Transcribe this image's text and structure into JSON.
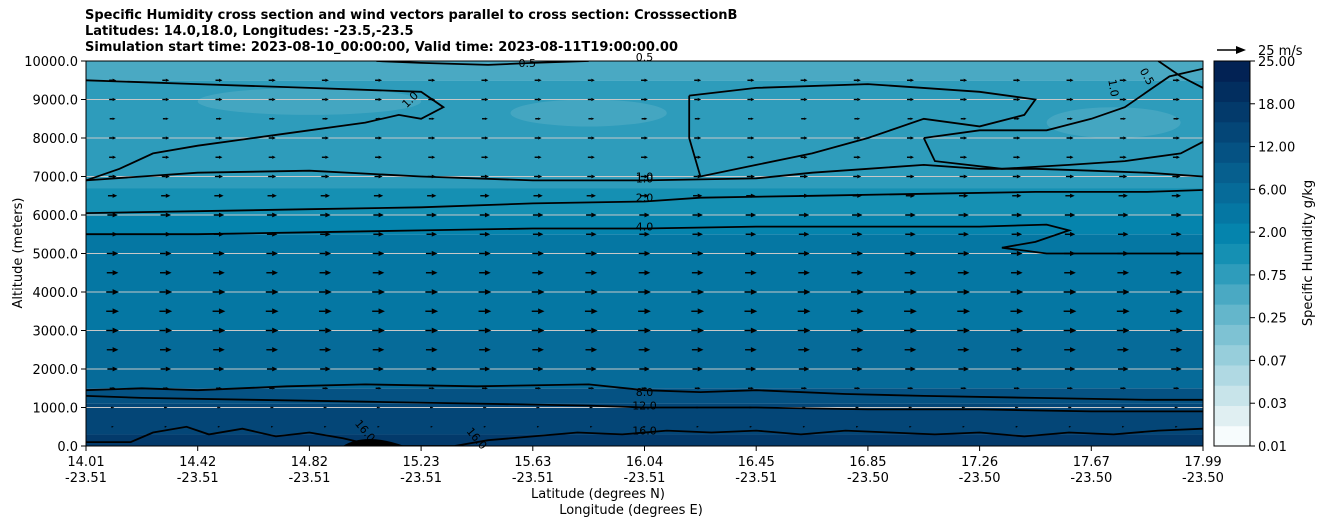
{
  "chart_data": {
    "type": "contour",
    "title_lines": [
      "Specific Humidity cross section and wind vectors parallel to cross section: CrosssectionB",
      "Latitudes: 14.0,18.0, Longitudes: -23.5,-23.5",
      "Simulation start time: 2023-08-10_00:00:00, Valid time: 2023-08-11T19:00:00.00"
    ],
    "ylabel": "Altitude (meters)",
    "xlabel_lat": "Latitude (degrees N)",
    "xlabel_lon": "Longitude (degrees E)",
    "ylim": [
      0,
      10000
    ],
    "y_ticks": [
      "0.0",
      "1000.0",
      "2000.0",
      "3000.0",
      "4000.0",
      "5000.0",
      "6000.0",
      "7000.0",
      "8000.0",
      "9000.0",
      "10000.0"
    ],
    "x_ticks": [
      {
        "lat": "14.01",
        "lon": "-23.51"
      },
      {
        "lat": "14.42",
        "lon": "-23.51"
      },
      {
        "lat": "14.82",
        "lon": "-23.51"
      },
      {
        "lat": "15.23",
        "lon": "-23.51"
      },
      {
        "lat": "15.63",
        "lon": "-23.51"
      },
      {
        "lat": "16.04",
        "lon": "-23.51"
      },
      {
        "lat": "16.45",
        "lon": "-23.51"
      },
      {
        "lat": "16.85",
        "lon": "-23.50"
      },
      {
        "lat": "17.26",
        "lon": "-23.50"
      },
      {
        "lat": "17.67",
        "lon": "-23.50"
      },
      {
        "lat": "17.99",
        "lon": "-23.50"
      }
    ],
    "colorbar": {
      "label": "Specific Humidity g/kg",
      "ticks": [
        "0.01",
        "0.03",
        "0.07",
        "0.15",
        "0.25",
        "0.50",
        "0.75",
        "1.00",
        "2.00",
        "4.00",
        "6.00",
        "9.00",
        "12.00",
        "15.00",
        "18.00",
        "21.00",
        "25.00"
      ],
      "tick_labels": [
        "0.01",
        "0.03",
        "0.07",
        "0.25",
        "0.75",
        "2.00",
        "6.00",
        "12.00",
        "18.00",
        "25.00"
      ],
      "colors": [
        "#f7fcfd",
        "#e0eff2",
        "#c8e4ea",
        "#b0d9e3",
        "#97cedb",
        "#7ec2d3",
        "#64b6cb",
        "#4aa9c3",
        "#2e9cbb",
        "#1590b3",
        "#0584ad",
        "#0577a3",
        "#066b99",
        "#065f8e",
        "#055283",
        "#044677",
        "#033a6b",
        "#022e5f",
        "#022254"
      ]
    },
    "wind_reference": {
      "label": "25 m/s",
      "speed": 25
    },
    "contour_labels": [
      "0.5",
      "0.5",
      "1.0",
      "1.0",
      "0.5",
      "1.0",
      "1.0",
      "2.0",
      "4.0",
      "8.0",
      "12.0",
      "16.0",
      "16.0",
      "16.0"
    ],
    "field_bands": [
      {
        "from": 0,
        "to": 300,
        "qv": 18
      },
      {
        "from": 300,
        "to": 1100,
        "qv": 15
      },
      {
        "from": 1100,
        "to": 1500,
        "qv": 12
      },
      {
        "from": 1500,
        "to": 3000,
        "qv": 9
      },
      {
        "from": 3000,
        "to": 5500,
        "qv": 6
      },
      {
        "from": 5500,
        "to": 6000,
        "qv": 4
      },
      {
        "from": 6000,
        "to": 6700,
        "qv": 2
      },
      {
        "from": 6700,
        "to": 9500,
        "qv": 1
      },
      {
        "from": 9500,
        "to": 10000,
        "qv": 0.75
      }
    ],
    "wind_rows": [
      {
        "alt": 500,
        "speed": 2
      },
      {
        "alt": 1000,
        "speed": 3
      },
      {
        "alt": 1500,
        "speed": 5
      },
      {
        "alt": 2000,
        "speed": 9
      },
      {
        "alt": 2500,
        "speed": 10
      },
      {
        "alt": 3000,
        "speed": 11
      },
      {
        "alt": 3500,
        "speed": 11
      },
      {
        "alt": 4000,
        "speed": 11
      },
      {
        "alt": 4500,
        "speed": 10
      },
      {
        "alt": 5000,
        "speed": 10
      },
      {
        "alt": 5500,
        "speed": 9
      },
      {
        "alt": 6000,
        "speed": 9
      },
      {
        "alt": 6500,
        "speed": 8
      },
      {
        "alt": 7000,
        "speed": 7
      },
      {
        "alt": 7500,
        "speed": 6
      },
      {
        "alt": 8000,
        "speed": 6
      },
      {
        "alt": 8500,
        "speed": 5
      },
      {
        "alt": 9000,
        "speed": 6
      },
      {
        "alt": 9500,
        "speed": 6
      }
    ],
    "wind_columns": 21,
    "contours": [
      {
        "level": "16.0",
        "pts": [
          [
            0,
            0.1
          ],
          [
            0.04,
            0.1
          ],
          [
            0.06,
            0.35
          ],
          [
            0.09,
            0.5
          ],
          [
            0.11,
            0.3
          ],
          [
            0.14,
            0.45
          ],
          [
            0.17,
            0.25
          ],
          [
            0.2,
            0.35
          ],
          [
            0.23,
            0.2
          ],
          [
            0.26,
            0
          ],
          [
            0.28,
            0
          ],
          [
            0.33,
            0
          ],
          [
            0.36,
            0.15
          ],
          [
            0.4,
            0.25
          ],
          [
            0.44,
            0.35
          ],
          [
            0.48,
            0.3
          ],
          [
            0.52,
            0.4
          ],
          [
            0.56,
            0.35
          ],
          [
            0.6,
            0.4
          ],
          [
            0.64,
            0.3
          ],
          [
            0.68,
            0.4
          ],
          [
            0.72,
            0.35
          ],
          [
            0.76,
            0.3
          ],
          [
            0.8,
            0.35
          ],
          [
            0.84,
            0.25
          ],
          [
            0.88,
            0.35
          ],
          [
            0.92,
            0.3
          ],
          [
            0.96,
            0.4
          ],
          [
            1,
            0.45
          ]
        ]
      },
      {
        "level": "12.0",
        "pts": [
          [
            0,
            1.3
          ],
          [
            0.05,
            1.25
          ],
          [
            0.15,
            1.2
          ],
          [
            0.25,
            1.15
          ],
          [
            0.35,
            1.1
          ],
          [
            0.45,
            1.05
          ],
          [
            0.5,
            1.0
          ],
          [
            0.6,
            1.0
          ],
          [
            0.7,
            0.95
          ],
          [
            0.8,
            0.95
          ],
          [
            0.9,
            0.9
          ],
          [
            1,
            0.9
          ]
        ]
      },
      {
        "level": "8.0",
        "pts": [
          [
            0,
            1.45
          ],
          [
            0.05,
            1.5
          ],
          [
            0.1,
            1.45
          ],
          [
            0.18,
            1.55
          ],
          [
            0.25,
            1.6
          ],
          [
            0.35,
            1.55
          ],
          [
            0.45,
            1.6
          ],
          [
            0.5,
            1.45
          ],
          [
            0.55,
            1.4
          ],
          [
            0.6,
            1.45
          ],
          [
            0.68,
            1.35
          ],
          [
            0.75,
            1.3
          ],
          [
            0.85,
            1.25
          ],
          [
            0.95,
            1.2
          ],
          [
            1,
            1.2
          ]
        ]
      },
      {
        "level": "4.0",
        "pts": [
          [
            0,
            5.5
          ],
          [
            0.1,
            5.5
          ],
          [
            0.2,
            5.55
          ],
          [
            0.3,
            5.6
          ],
          [
            0.4,
            5.65
          ],
          [
            0.5,
            5.65
          ],
          [
            0.6,
            5.7
          ],
          [
            0.7,
            5.7
          ],
          [
            0.8,
            5.7
          ],
          [
            0.86,
            5.75
          ],
          [
            0.88,
            5.6
          ],
          [
            0.85,
            5.3
          ],
          [
            0.82,
            5.15
          ],
          [
            0.86,
            5.0
          ],
          [
            0.95,
            5.0
          ],
          [
            1,
            5.0
          ]
        ]
      },
      {
        "level": "2.0",
        "pts": [
          [
            0,
            6.05
          ],
          [
            0.1,
            6.1
          ],
          [
            0.2,
            6.15
          ],
          [
            0.3,
            6.2
          ],
          [
            0.4,
            6.3
          ],
          [
            0.5,
            6.35
          ],
          [
            0.55,
            6.45
          ],
          [
            0.65,
            6.5
          ],
          [
            0.75,
            6.55
          ],
          [
            0.85,
            6.6
          ],
          [
            0.95,
            6.6
          ],
          [
            1,
            6.65
          ]
        ]
      },
      {
        "level": "1.0",
        "pts": [
          [
            0,
            6.9
          ],
          [
            0.05,
            7.0
          ],
          [
            0.1,
            7.1
          ],
          [
            0.2,
            7.15
          ],
          [
            0.3,
            7.0
          ],
          [
            0.4,
            6.9
          ],
          [
            0.5,
            6.9
          ],
          [
            0.6,
            6.95
          ],
          [
            0.65,
            7.1
          ],
          [
            0.7,
            7.2
          ],
          [
            0.75,
            7.3
          ],
          [
            0.8,
            7.2
          ],
          [
            0.85,
            7.2
          ],
          [
            0.9,
            7.15
          ],
          [
            0.95,
            7.1
          ],
          [
            1,
            7.0
          ]
        ]
      },
      {
        "level": "1.0",
        "pts": [
          [
            0,
            6.9
          ],
          [
            0.03,
            7.2
          ],
          [
            0.06,
            7.6
          ],
          [
            0.1,
            7.8
          ],
          [
            0.15,
            8.0
          ],
          [
            0.2,
            8.2
          ],
          [
            0.25,
            8.4
          ],
          [
            0.28,
            8.6
          ],
          [
            0.3,
            8.5
          ],
          [
            0.32,
            8.8
          ],
          [
            0.3,
            9.2
          ],
          [
            0.2,
            9.3
          ],
          [
            0.1,
            9.4
          ],
          [
            0,
            9.5
          ]
        ]
      },
      {
        "level": "1.0",
        "pts": [
          [
            0.54,
            9.1
          ],
          [
            0.6,
            9.3
          ],
          [
            0.7,
            9.4
          ],
          [
            0.8,
            9.2
          ],
          [
            0.85,
            9.0
          ],
          [
            0.84,
            8.6
          ],
          [
            0.8,
            8.3
          ],
          [
            0.75,
            8.5
          ],
          [
            0.7,
            8.0
          ],
          [
            0.65,
            7.6
          ],
          [
            0.6,
            7.3
          ],
          [
            0.55,
            7.0
          ],
          [
            0.54,
            8.0
          ],
          [
            0.54,
            9.1
          ]
        ]
      },
      {
        "level": "1.0",
        "pts": [
          [
            0.75,
            8.0
          ],
          [
            0.8,
            8.2
          ],
          [
            0.86,
            8.2
          ],
          [
            0.9,
            8.5
          ],
          [
            0.93,
            8.8
          ],
          [
            0.95,
            9.2
          ],
          [
            0.97,
            9.6
          ],
          [
            1,
            9.8
          ]
        ]
      },
      {
        "level": "1.0",
        "pts": [
          [
            0.75,
            8.0
          ],
          [
            0.76,
            7.4
          ],
          [
            0.82,
            7.2
          ],
          [
            0.88,
            7.3
          ],
          [
            0.93,
            7.4
          ],
          [
            0.98,
            7.6
          ],
          [
            1,
            7.9
          ]
        ]
      },
      {
        "level": "0.5",
        "pts": [
          [
            0.26,
            10
          ],
          [
            0.3,
            9.95
          ],
          [
            0.36,
            9.9
          ],
          [
            0.4,
            9.95
          ],
          [
            0.45,
            10
          ]
        ]
      },
      {
        "level": "0.5",
        "pts": [
          [
            0.96,
            10
          ],
          [
            0.98,
            9.6
          ],
          [
            1,
            9.3
          ]
        ]
      }
    ]
  }
}
